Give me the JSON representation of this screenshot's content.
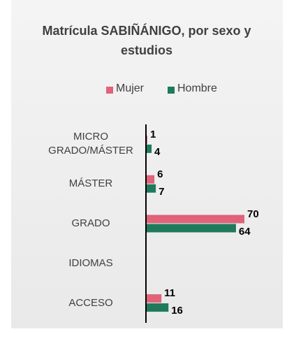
{
  "chart_data": {
    "type": "bar",
    "orientation": "horizontal",
    "title": "Matrícula SABIÑÁNIGO, por sexo y estudios",
    "categories": [
      "MICRO GRADO/MÁSTER",
      "MÁSTER",
      "GRADO",
      "IDIOMAS",
      "ACCESO"
    ],
    "series": [
      {
        "name": "Mujer",
        "color": "#e06379",
        "values": [
          1,
          6,
          70,
          null,
          11
        ]
      },
      {
        "name": "Hombre",
        "color": "#1f7a5c",
        "values": [
          4,
          7,
          64,
          null,
          16
        ]
      }
    ],
    "legend": "top"
  }
}
